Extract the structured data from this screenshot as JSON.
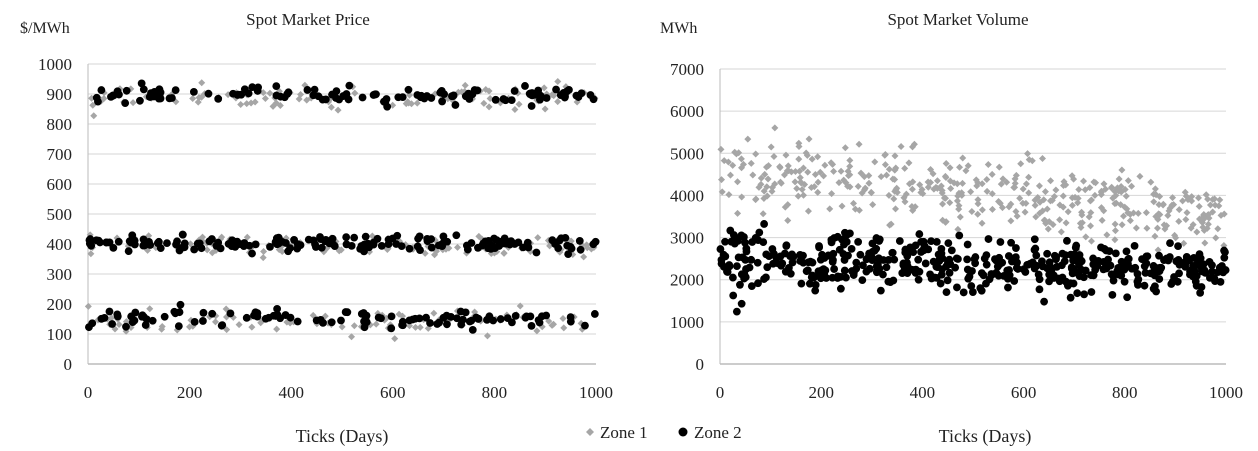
{
  "chart_data": [
    {
      "type": "scatter",
      "title": "Spot Market Price",
      "ylabel": "$/MWh",
      "xlabel": "Ticks (Days)",
      "xlim": [
        0,
        1000
      ],
      "ylim": [
        0,
        1000
      ],
      "xticks": [
        0,
        200,
        400,
        600,
        800,
        1000
      ],
      "yticks": [
        0,
        100,
        200,
        300,
        400,
        500,
        600,
        700,
        800,
        900,
        1000
      ],
      "grid": true,
      "series": [
        {
          "name": "Zone 1",
          "color": "#a6a6a6",
          "marker": "diamond",
          "clusters": [
            {
              "center": 395,
              "spread": 28,
              "count": 130,
              "x_range": [
                0,
                1000
              ]
            },
            {
              "center": 890,
              "spread": 30,
              "count": 110,
              "x_range": [
                0,
                1000
              ]
            },
            {
              "center": 140,
              "spread": 32,
              "count": 95,
              "x_range": [
                0,
                1000
              ]
            }
          ]
        },
        {
          "name": "Zone 2",
          "color": "#000000",
          "marker": "circle",
          "clusters": [
            {
              "center": 400,
              "spread": 22,
              "count": 170,
              "x_range": [
                0,
                1000
              ]
            },
            {
              "center": 895,
              "spread": 22,
              "count": 120,
              "x_range": [
                0,
                1000
              ]
            },
            {
              "center": 150,
              "spread": 25,
              "count": 110,
              "x_range": [
                0,
                1000
              ]
            }
          ]
        }
      ]
    },
    {
      "type": "scatter",
      "title": "Spot Market Volume",
      "ylabel": "MWh",
      "xlabel": "Ticks (Days)",
      "xlim": [
        0,
        1000
      ],
      "ylim": [
        0,
        7000
      ],
      "xticks": [
        0,
        200,
        400,
        600,
        800,
        1000
      ],
      "yticks": [
        0,
        1000,
        2000,
        3000,
        4000,
        5000,
        6000,
        7000
      ],
      "grid": true,
      "series": [
        {
          "name": "Zone 1",
          "color": "#a6a6a6",
          "marker": "diamond",
          "trend": {
            "start_mean": 4600,
            "end_mean": 3500,
            "spread": 550
          },
          "count": 420
        },
        {
          "name": "Zone 2",
          "color": "#000000",
          "marker": "circle",
          "trend": {
            "start_mean": 2500,
            "end_mean": 2200,
            "spread": 380
          },
          "count": 480
        }
      ]
    }
  ],
  "legend": {
    "placement": "bottom-center",
    "items": [
      {
        "label": "Zone 1",
        "color": "#a6a6a6",
        "marker": "diamond"
      },
      {
        "label": "Zone 2",
        "color": "#000000",
        "marker": "circle"
      }
    ]
  }
}
